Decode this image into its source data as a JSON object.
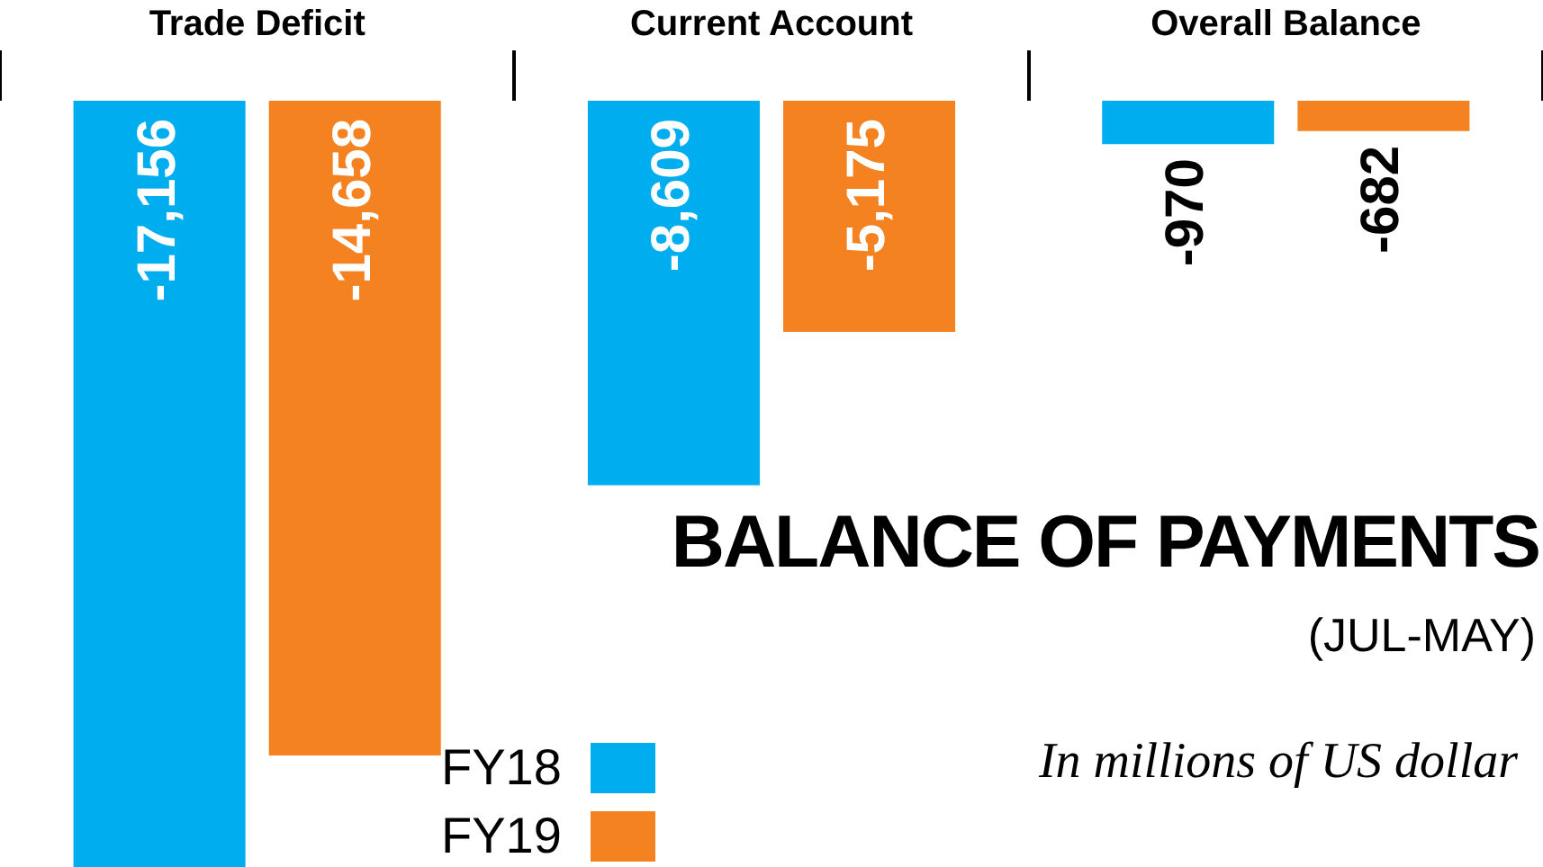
{
  "chart_data": {
    "type": "bar",
    "title": "BALANCE OF PAYMENTS",
    "subtitle": "(JUL-MAY)",
    "annotations": [
      "In millions of US dollar"
    ],
    "categories": [
      "Trade Deficit",
      "Current Account",
      "Overall Balance"
    ],
    "series": [
      {
        "name": "FY18",
        "color": "#00aeef",
        "values": [
          -17156,
          -8609,
          -970
        ],
        "value_labels": [
          "-17,156",
          "-8,609",
          "-970"
        ]
      },
      {
        "name": "FY19",
        "color": "#f58220",
        "values": [
          -14658,
          -5175,
          -682
        ],
        "value_labels": [
          "-14,658",
          "-5,175",
          "-682"
        ]
      }
    ],
    "grid": false,
    "legend": "bottom"
  }
}
